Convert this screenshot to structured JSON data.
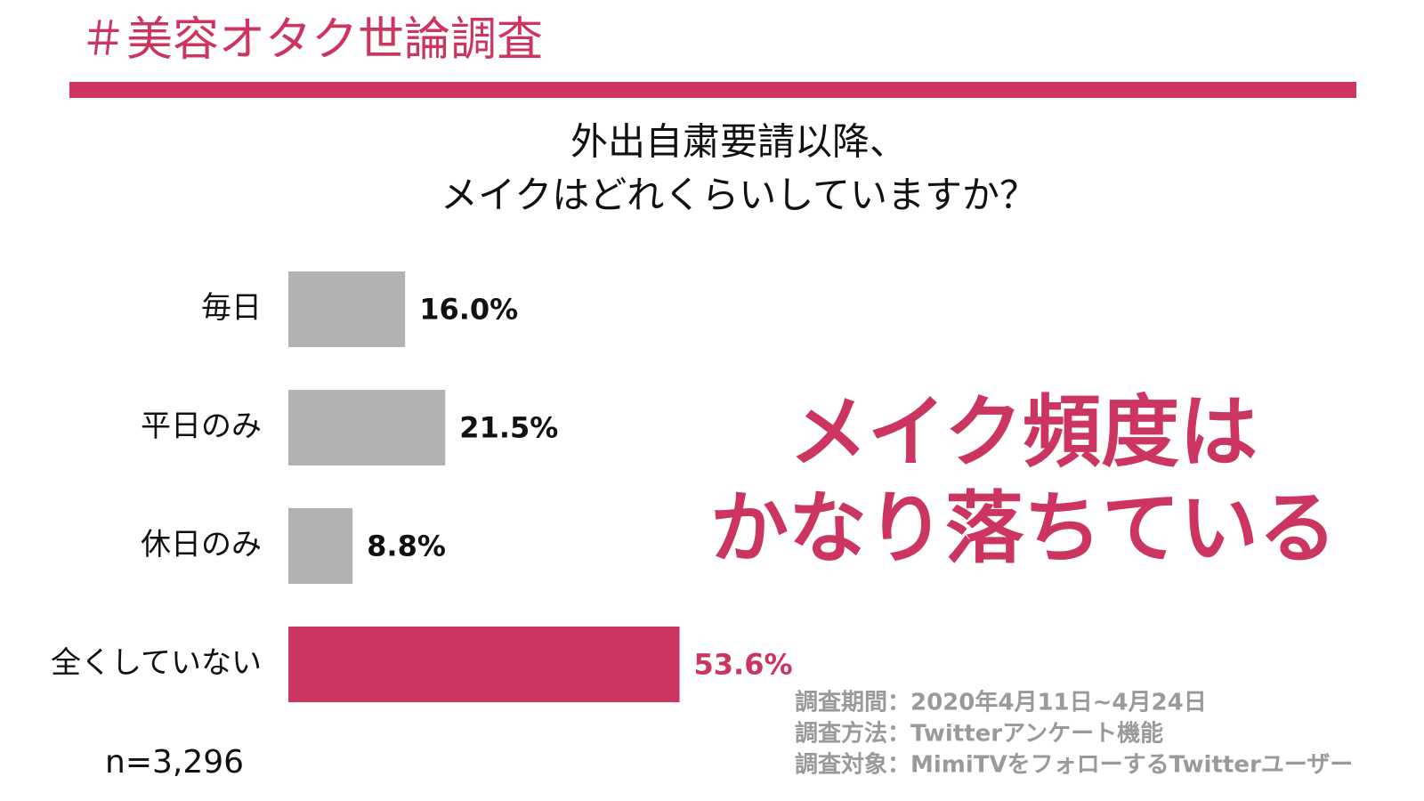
{
  "chart_data": {
    "type": "bar",
    "title": "＃美容オタク世論調査",
    "subtitle": [
      "外出自粛要請以降、",
      "メイクはどれくらいしていますか？"
    ],
    "categories": [
      "毎日",
      "平日のみ",
      "休日のみ",
      "全くしていない"
    ],
    "values": [
      16.0,
      21.5,
      8.8,
      53.6
    ],
    "value_labels": [
      "16.0%",
      "21.5%",
      "8.8%",
      "53.6%"
    ],
    "colors": [
      "#b3b2b2",
      "#b3b2b2",
      "#b3b2b2",
      "#cc3560"
    ],
    "label_colors": [
      "#111111",
      "#111111",
      "#111111",
      "#cc3560"
    ],
    "annotation": [
      "メイク頻度は",
      "かなり落ちている"
    ],
    "sample_size": "n=3,296",
    "notes": [
      "調査期間：2020年4月11日~4月24日",
      "調査方法：Twitterアンケート機能",
      "調査対象：MimiTVをフォローするTwitterユーザー"
    ]
  }
}
